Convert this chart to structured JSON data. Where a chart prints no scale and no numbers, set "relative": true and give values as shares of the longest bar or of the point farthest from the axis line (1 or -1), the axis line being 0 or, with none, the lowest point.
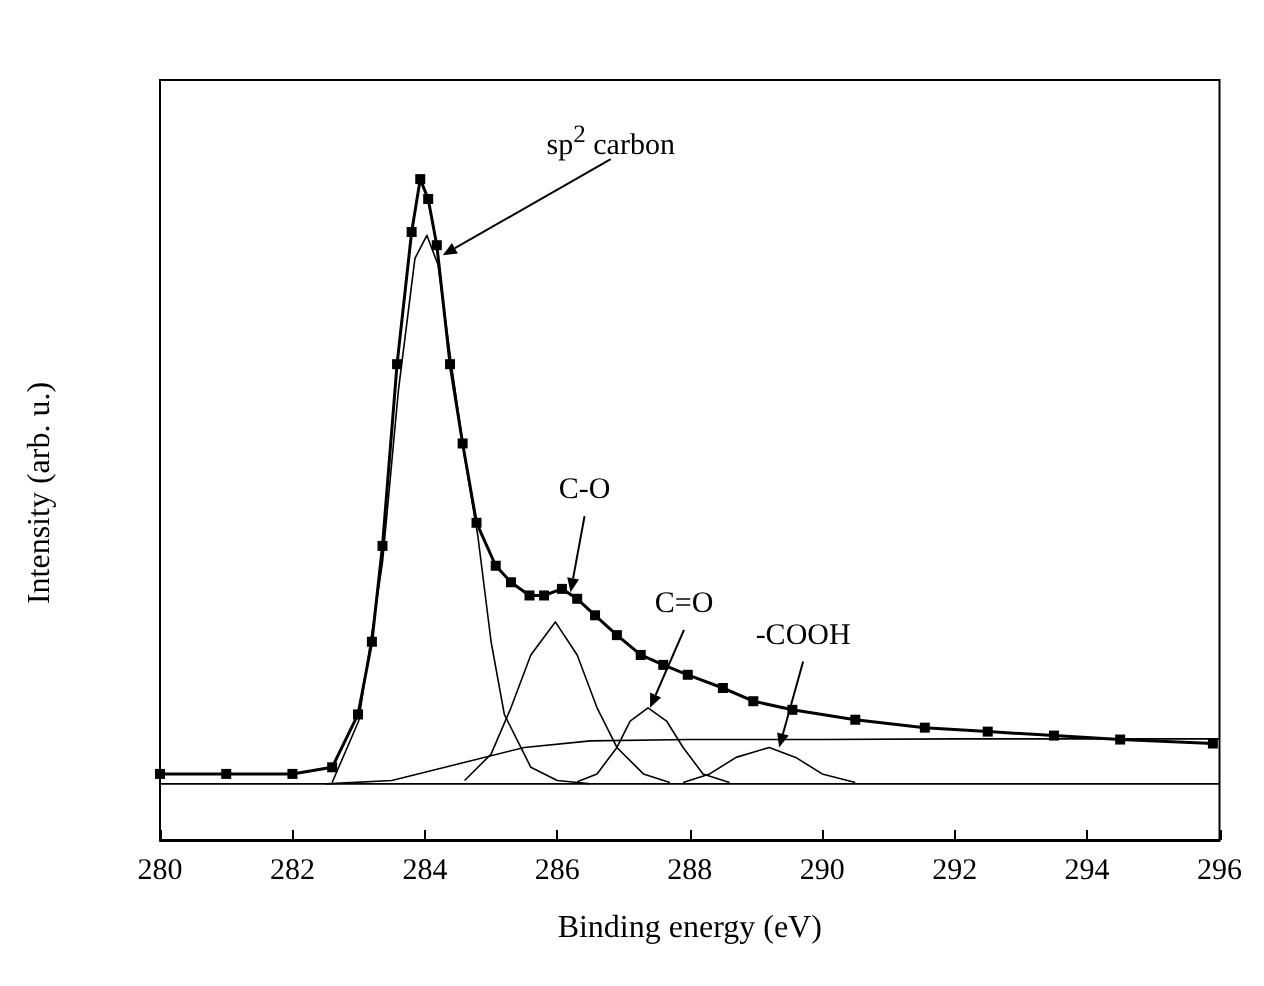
{
  "chart_data": {
    "type": "line",
    "xlabel": "Binding energy (eV)",
    "ylabel": "Intensity (arb. u.)",
    "relative": true,
    "xlim": [
      280,
      296
    ],
    "xticks": [
      280,
      282,
      284,
      286,
      288,
      290,
      292,
      294,
      296
    ],
    "grid": false,
    "series": [
      {
        "marker": "square",
        "color": "#000000",
        "x": [
          280,
          281,
          282,
          282.6,
          282.99,
          283.2,
          283.36,
          283.58,
          283.8,
          283.93,
          284.05,
          284.18,
          284.38,
          284.57,
          284.78,
          285.07,
          285.3,
          285.58,
          285.8,
          286.07,
          286.3,
          286.57,
          286.9,
          287.26,
          287.6,
          287.97,
          288.5,
          288.96,
          289.55,
          290.5,
          291.55,
          292.5,
          293.5,
          294.5,
          295.9
        ],
        "values": [
          0.1,
          0.1,
          0.1,
          0.11,
          0.19,
          0.3,
          0.445,
          0.72,
          0.92,
          1,
          0.97,
          0.9,
          0.72,
          0.6,
          0.48,
          0.415,
          0.39,
          0.37,
          0.37,
          0.38,
          0.365,
          0.34,
          0.31,
          0.28,
          0.265,
          0.25,
          0.23,
          0.21,
          0.197,
          0.182,
          0.17,
          0.164,
          0.158,
          0.152,
          0.146
        ]
      },
      {
        "marker": "none",
        "color": "#000000",
        "x": [
          282.6,
          283.0,
          283.36,
          283.6,
          283.85,
          284.03,
          284.2,
          284.4,
          284.6,
          284.8,
          285.0,
          285.2,
          285.6,
          286.0,
          286.5
        ],
        "values": [
          0.087,
          0.18,
          0.42,
          0.68,
          0.88,
          0.915,
          0.87,
          0.72,
          0.58,
          0.46,
          0.3,
          0.19,
          0.11,
          0.09,
          0.085
        ]
      },
      {
        "marker": "none",
        "color": "#000000",
        "x": [
          284.6,
          285.0,
          285.3,
          285.6,
          285.97,
          286.3,
          286.6,
          286.9,
          287.3,
          287.7
        ],
        "values": [
          0.09,
          0.13,
          0.2,
          0.28,
          0.33,
          0.28,
          0.2,
          0.14,
          0.1,
          0.087
        ]
      },
      {
        "marker": "none",
        "color": "#000000",
        "x": [
          286.3,
          286.6,
          286.9,
          287.1,
          287.37,
          287.65,
          287.9,
          288.2,
          288.6
        ],
        "values": [
          0.088,
          0.1,
          0.14,
          0.18,
          0.2,
          0.18,
          0.14,
          0.1,
          0.087
        ]
      },
      {
        "marker": "none",
        "color": "#000000",
        "x": [
          287.9,
          288.3,
          288.7,
          289.2,
          289.6,
          290.0,
          290.5
        ],
        "values": [
          0.087,
          0.1,
          0.125,
          0.14,
          0.125,
          0.1,
          0.087
        ]
      },
      {
        "marker": "none",
        "color": "#000000",
        "x": [
          282.5,
          283.5,
          284.5,
          285.5,
          286.5,
          288,
          290,
          292,
          294,
          296
        ],
        "values": [
          0.085,
          0.09,
          0.115,
          0.14,
          0.15,
          0.152,
          0.152,
          0.153,
          0.153,
          0.153
        ]
      },
      {
        "marker": "none",
        "color": "#000000",
        "x": [
          280,
          296
        ],
        "values": [
          0.085,
          0.085
        ]
      }
    ],
    "annotations": [
      {
        "text": "sp$^{2}$ carbon",
        "x": 284.27,
        "y": 0.885
      },
      {
        "text": "C-O",
        "x": 286.2,
        "y": 0.375
      },
      {
        "text": "C=O",
        "x": 287.4,
        "y": 0.2
      },
      {
        "text": "-COOH",
        "x": 289.35,
        "y": 0.14
      }
    ]
  }
}
